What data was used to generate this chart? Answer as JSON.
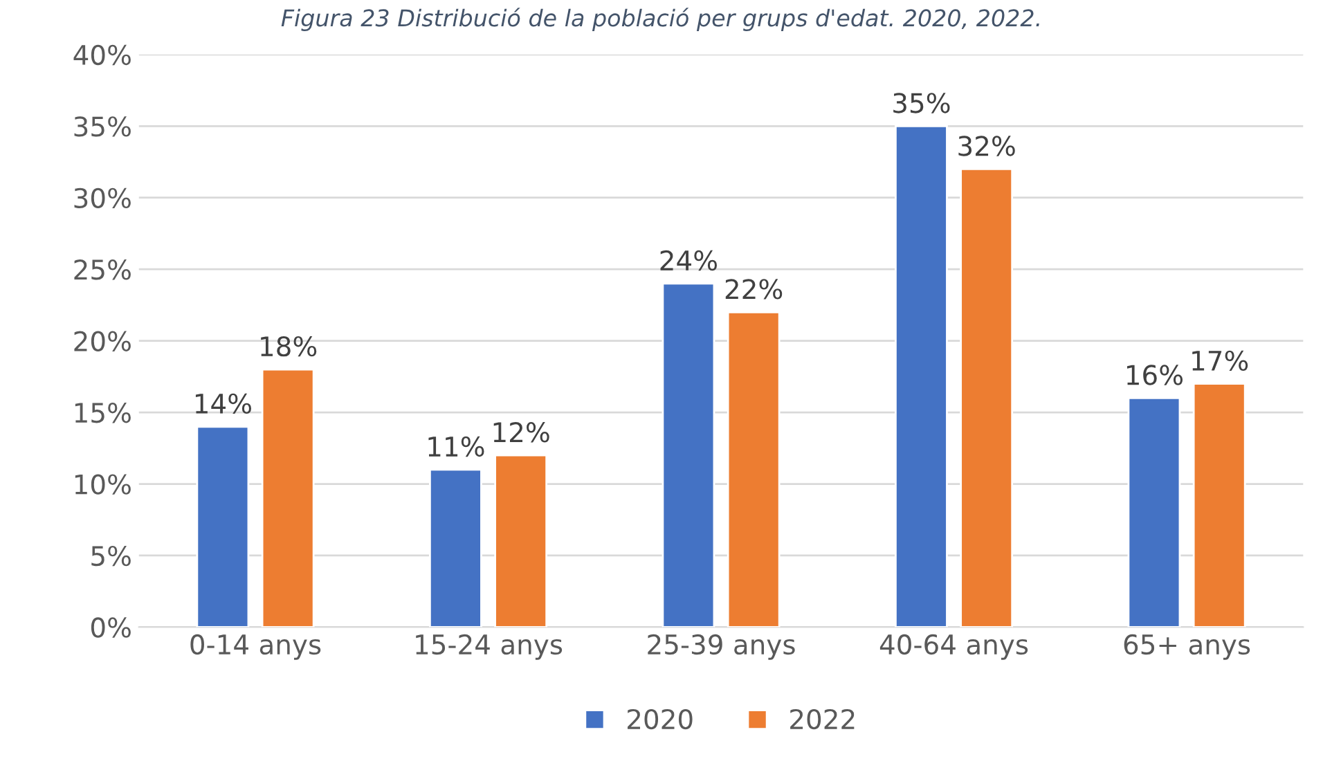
{
  "chart_data": {
    "type": "bar",
    "title": "Figura 23 Distribució de la població per grups d'edat. 2020, 2022.",
    "categories": [
      "0-14 anys",
      "15-24 anys",
      "25-39 anys",
      "40-64 anys",
      "65+ anys"
    ],
    "series": [
      {
        "name": "2020",
        "color": "#4472c4",
        "values": [
          14,
          11,
          24,
          35,
          16
        ],
        "value_labels": [
          "14%",
          "11%",
          "24%",
          "35%",
          "16%"
        ]
      },
      {
        "name": "2022",
        "color": "#ed7d31",
        "values": [
          18,
          12,
          22,
          32,
          17
        ],
        "value_labels": [
          "18%",
          "12%",
          "22%",
          "32%",
          "17%"
        ]
      }
    ],
    "ylim": [
      0,
      40
    ],
    "yticks": [
      {
        "value": 0,
        "label": "0%"
      },
      {
        "value": 5,
        "label": "5%"
      },
      {
        "value": 10,
        "label": "10%"
      },
      {
        "value": 15,
        "label": "15%"
      },
      {
        "value": 20,
        "label": "20%"
      },
      {
        "value": 25,
        "label": "25%"
      },
      {
        "value": 30,
        "label": "30%"
      },
      {
        "value": 35,
        "label": "35%"
      },
      {
        "value": 40,
        "label": "40%"
      }
    ],
    "grid": "y",
    "legend": "bottom"
  }
}
